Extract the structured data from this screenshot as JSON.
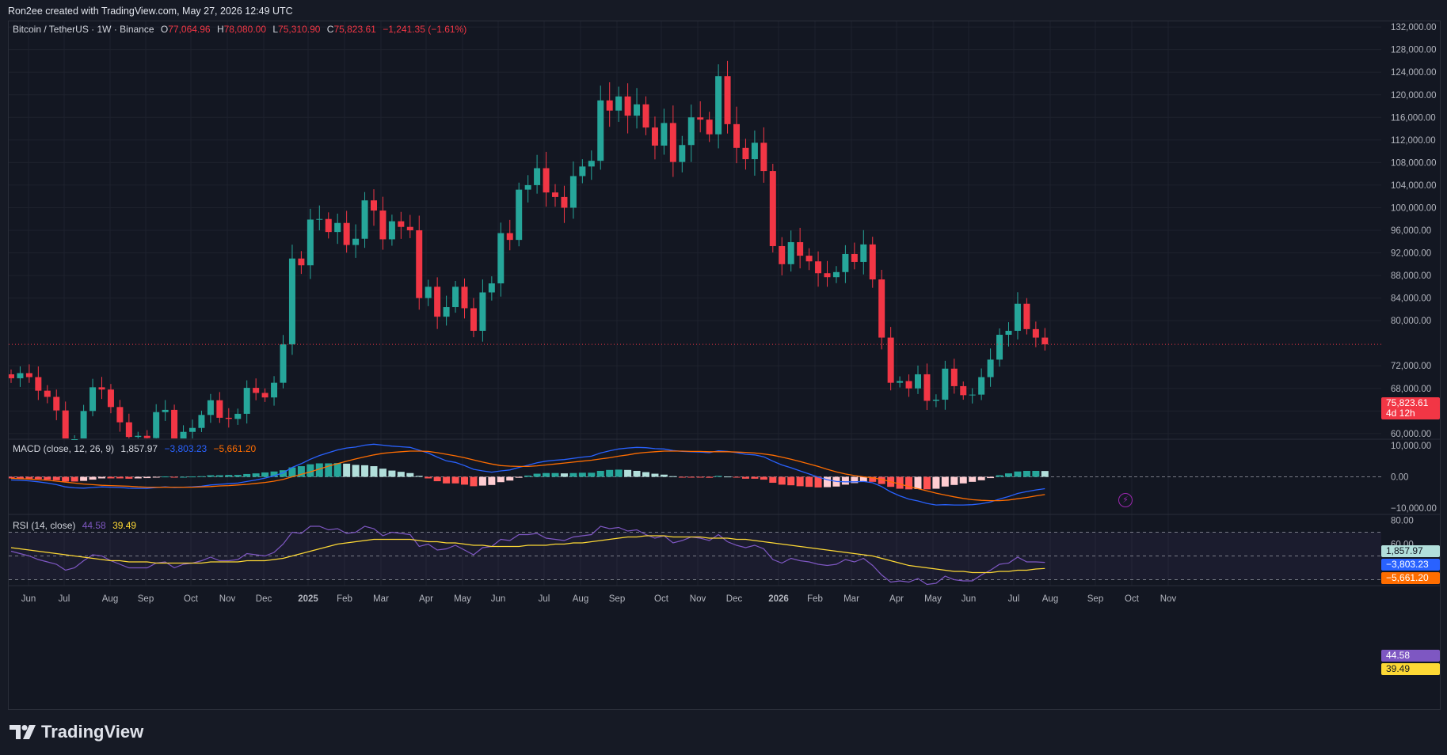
{
  "header": {
    "caption": "Ron2ee created with TradingView.com, May 27, 2026 12:49 UTC"
  },
  "symbol": {
    "title": "Bitcoin / TetherUS · 1W · Binance",
    "o_label": "O",
    "o": "77,064.96",
    "h_label": "H",
    "h": "78,080.00",
    "l_label": "L",
    "l": "75,310.90",
    "c_label": "C",
    "c": "75,823.61",
    "change": "−1,241.35 (−1.61%)"
  },
  "price_tag": {
    "price": "75,823.61",
    "countdown": "4d 12h"
  },
  "macd": {
    "label": "MACD (close, 12, 26, 9)",
    "hist": "1,857.97",
    "macd": "−3,803.23",
    "signal": "−5,661.20",
    "axis": [
      "10,000.00",
      "0.00",
      "−10,000.00"
    ]
  },
  "rsi": {
    "label": "RSI (14, close)",
    "rsi": "44.58",
    "ma": "39.49",
    "axis": [
      "80.00",
      "60.00"
    ]
  },
  "colors": {
    "up": "#26a69a",
    "down": "#f23645",
    "macd_line": "#2962ff",
    "signal_line": "#ff6d00",
    "rsi_line": "#7e57c2",
    "rsi_ma": "#fdd835"
  },
  "brand": {
    "name": "TradingView"
  },
  "chart_data": {
    "type": "candlestick",
    "title": "Bitcoin / TetherUS · 1W · Binance",
    "price_axis": [
      "132,000.00",
      "128,000.00",
      "124,000.00",
      "120,000.00",
      "116,000.00",
      "112,000.00",
      "108,000.00",
      "104,000.00",
      "100,000.00",
      "96,000.00",
      "92,000.00",
      "88,000.00",
      "84,000.00",
      "80,000.00",
      "72,000.00",
      "68,000.00",
      "64,000.00",
      "60,000.00"
    ],
    "ylim": [
      59000,
      133000
    ],
    "time_axis": [
      "Jun",
      "Jul",
      "Aug",
      "Sep",
      "Oct",
      "Nov",
      "Dec",
      "2025",
      "Feb",
      "Mar",
      "Apr",
      "May",
      "Jun",
      "Jul",
      "Aug",
      "Sep",
      "Oct",
      "Nov",
      "Dec",
      "2026",
      "Feb",
      "Mar",
      "Apr",
      "May",
      "Jun",
      "Jul",
      "Aug",
      "Sep",
      "Oct",
      "Nov"
    ],
    "time_axis_bold": [
      "2025",
      "2026"
    ],
    "closes": [
      69800,
      70700,
      70000,
      67600,
      66500,
      64100,
      57300,
      59000,
      64000,
      68200,
      67800,
      64700,
      62000,
      59400,
      59600,
      59200,
      63800,
      64200,
      57600,
      60300,
      61000,
      63300,
      65900,
      62800,
      62600,
      63500,
      68100,
      67200,
      66400,
      69000,
      75800,
      91000,
      89800,
      97900,
      98000,
      95700,
      97300,
      93400,
      94500,
      101300,
      99500,
      94400,
      97600,
      96600,
      96000,
      84000,
      86000,
      80700,
      82400,
      86000,
      82200,
      78200,
      85000,
      86600,
      95500,
      94300,
      103200,
      104000,
      107000,
      102700,
      101900,
      100000,
      105600,
      107300,
      108300,
      119000,
      117200,
      119700,
      116300,
      118300,
      114200,
      111000,
      115000,
      108100,
      111100,
      116000,
      115600,
      113000,
      123300,
      114800,
      110600,
      108600,
      111500,
      106500,
      93200,
      90000,
      93900,
      91500,
      90500,
      88400,
      87700,
      88600,
      91800,
      90400,
      93500,
      87300,
      77000,
      69000,
      69300,
      68000,
      70500,
      65800,
      66000,
      71500,
      68400,
      66800,
      66900,
      70000,
      73100,
      77500,
      78200,
      83000,
      78500,
      77000,
      75800
    ],
    "macd_line": [
      -1000,
      -1100,
      -1300,
      -1600,
      -2000,
      -2500,
      -3200,
      -3500,
      -3600,
      -3400,
      -3200,
      -3300,
      -3400,
      -3600,
      -3700,
      -3700,
      -3400,
      -3200,
      -3400,
      -3300,
      -3200,
      -3000,
      -2600,
      -2400,
      -2200,
      -2000,
      -1500,
      -1000,
      -400,
      300,
      1300,
      3000,
      4200,
      5600,
      6800,
      7700,
      8600,
      9200,
      9500,
      10100,
      10400,
      10100,
      9800,
      9600,
      9400,
      8500,
      7600,
      6300,
      5100,
      4600,
      3600,
      2400,
      1900,
      1500,
      1900,
      2200,
      3000,
      3700,
      4500,
      5000,
      5300,
      5500,
      5900,
      6300,
      6600,
      7600,
      8300,
      8900,
      9200,
      9400,
      9300,
      9000,
      8900,
      8400,
      8100,
      8000,
      7900,
      7700,
      8300,
      8100,
      7700,
      7200,
      7000,
      6400,
      5000,
      3800,
      2900,
      1900,
      900,
      -100,
      -900,
      -1500,
      -1600,
      -1600,
      -1500,
      -1900,
      -3100,
      -4800,
      -6100,
      -7100,
      -7700,
      -8500,
      -9000,
      -8900,
      -9000,
      -9000,
      -8900,
      -8600,
      -8000,
      -7100,
      -6300,
      -5300,
      -4700,
      -4200,
      -3800
    ],
    "signal_line": [
      -500,
      -600,
      -700,
      -900,
      -1100,
      -1400,
      -1700,
      -2000,
      -2300,
      -2500,
      -2700,
      -2800,
      -2900,
      -3000,
      -3200,
      -3300,
      -3300,
      -3300,
      -3300,
      -3300,
      -3300,
      -3200,
      -3100,
      -2900,
      -2800,
      -2600,
      -2400,
      -2100,
      -1800,
      -1400,
      -800,
      0,
      800,
      1600,
      2500,
      3400,
      4200,
      5000,
      5700,
      6400,
      7000,
      7500,
      7800,
      8000,
      8200,
      8200,
      8100,
      7700,
      7200,
      6700,
      6100,
      5400,
      4700,
      4100,
      3600,
      3400,
      3300,
      3300,
      3500,
      3800,
      4100,
      4400,
      4700,
      5000,
      5300,
      5700,
      6100,
      6600,
      7000,
      7500,
      7800,
      8000,
      8200,
      8200,
      8200,
      8100,
      8100,
      8000,
      8000,
      8000,
      7900,
      7800,
      7600,
      7300,
      6900,
      6300,
      5600,
      4900,
      4100,
      3300,
      2400,
      1600,
      900,
      400,
      0,
      -300,
      -800,
      -1600,
      -2300,
      -3100,
      -3800,
      -4500,
      -5200,
      -5800,
      -6400,
      -6900,
      -7300,
      -7500,
      -7600,
      -7600,
      -7400,
      -7000,
      -6600,
      -6100,
      -5661
    ],
    "rsi": [
      54,
      52,
      50,
      47,
      45,
      43,
      38,
      40,
      46,
      51,
      50,
      46,
      43,
      40,
      40,
      40,
      44,
      45,
      40,
      43,
      44,
      46,
      49,
      46,
      46,
      47,
      52,
      51,
      50,
      53,
      60,
      70,
      69,
      75,
      75,
      72,
      73,
      69,
      70,
      75,
      73,
      67,
      70,
      69,
      68,
      58,
      60,
      55,
      56,
      59,
      55,
      51,
      57,
      58,
      64,
      63,
      68,
      68,
      69,
      65,
      64,
      63,
      66,
      67,
      68,
      75,
      73,
      74,
      71,
      72,
      68,
      65,
      67,
      61,
      63,
      66,
      65,
      63,
      68,
      62,
      59,
      57,
      59,
      56,
      47,
      44,
      48,
      46,
      45,
      43,
      42,
      43,
      47,
      45,
      48,
      42,
      34,
      28,
      29,
      28,
      31,
      26,
      27,
      33,
      30,
      29,
      29,
      34,
      38,
      43,
      44,
      49,
      45,
      45,
      44.58
    ],
    "rsi_ma": [
      57,
      56,
      55,
      54,
      53,
      52,
      51,
      50,
      49,
      48,
      47,
      46,
      46,
      45,
      45,
      45,
      44,
      44,
      44,
      44,
      44,
      44,
      45,
      45,
      45,
      45,
      46,
      46,
      46,
      47,
      48,
      50,
      52,
      54,
      56,
      58,
      60,
      61,
      62,
      63,
      64,
      64,
      64,
      64,
      64,
      63,
      62,
      62,
      61,
      61,
      60,
      59,
      59,
      58,
      58,
      58,
      58,
      59,
      59,
      59,
      60,
      60,
      61,
      61,
      62,
      63,
      64,
      65,
      66,
      66,
      67,
      67,
      67,
      66,
      66,
      66,
      66,
      65,
      65,
      65,
      64,
      64,
      63,
      62,
      61,
      60,
      59,
      58,
      57,
      56,
      55,
      54,
      53,
      52,
      51,
      50,
      48,
      46,
      44,
      42,
      41,
      40,
      39,
      38,
      37,
      37,
      36,
      36,
      36,
      37,
      37,
      38,
      38,
      39,
      39.49
    ],
    "indicator_ranges": {
      "macd": [
        -12000,
        12000
      ],
      "rsi": [
        25,
        85
      ]
    }
  }
}
